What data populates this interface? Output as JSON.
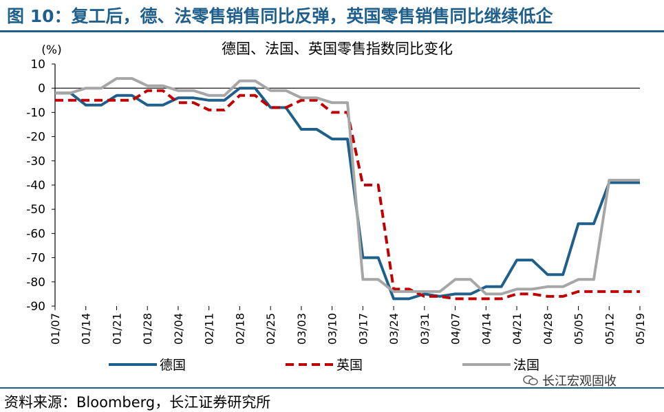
{
  "figure": {
    "title": "图 10：复工后，德、法零售销售同比反弹，英国零售销售同比继续低企",
    "source": "资料来源：Bloomberg，长江证券研究所",
    "watermark": "长江宏观固收"
  },
  "chart_data": {
    "type": "line",
    "title": "德国、法国、英国零售指数同比变化",
    "ylabel": "(%)",
    "xlabel": "",
    "ylim": [
      -90,
      10
    ],
    "yticks": [
      10,
      0,
      -10,
      -20,
      -30,
      -40,
      -50,
      -60,
      -70,
      -80,
      -90
    ],
    "x_tick_labels": [
      "01/07",
      "01/14",
      "01/21",
      "01/28",
      "02/04",
      "02/11",
      "02/18",
      "02/25",
      "03/03",
      "03/10",
      "03/17",
      "03/24",
      "03/31",
      "04/07",
      "04/14",
      "04/21",
      "04/28",
      "05/05",
      "05/12",
      "05/19"
    ],
    "x_points": [
      "01/07",
      "01/10",
      "01/14",
      "01/17",
      "01/21",
      "01/24",
      "01/28",
      "01/31",
      "02/04",
      "02/07",
      "02/11",
      "02/14",
      "02/18",
      "02/21",
      "02/25",
      "02/28",
      "03/03",
      "03/06",
      "03/10",
      "03/13",
      "03/17",
      "03/20",
      "03/24",
      "03/27",
      "03/31",
      "04/03",
      "04/07",
      "04/10",
      "04/14",
      "04/17",
      "04/21",
      "04/24",
      "04/28",
      "05/01",
      "05/05",
      "05/08",
      "05/12",
      "05/15",
      "05/19"
    ],
    "legend_position": "bottom",
    "grid": false,
    "series": [
      {
        "name": "德国",
        "color": "#1f5f8b",
        "dash": "solid",
        "values": [
          -2,
          -2,
          -7,
          -7,
          -3,
          -3,
          -7,
          -7,
          -4,
          -4,
          -5,
          -5,
          0,
          0,
          -8,
          -8,
          -17,
          -17,
          -21,
          -21,
          -70,
          -70,
          -87,
          -87,
          -85,
          -86,
          -85,
          -85,
          -82,
          -82,
          -71,
          -71,
          -77,
          -77,
          -56,
          -56,
          -39,
          -39,
          -39
        ]
      },
      {
        "name": "英国",
        "color": "#c00000",
        "dash": "dashed",
        "values": [
          -5,
          -5,
          -5,
          -5,
          -5,
          -5,
          -1,
          -1,
          -6,
          -6,
          -9,
          -9,
          -3,
          -3,
          -8,
          -8,
          -5,
          -5,
          -10,
          -10,
          -40,
          -40,
          -83,
          -83,
          -86,
          -86,
          -87,
          -87,
          -87,
          -87,
          -85,
          -85,
          -86,
          -86,
          -84,
          -84,
          -84,
          -84,
          -84
        ]
      },
      {
        "name": "法国",
        "color": "#a6a6a6",
        "dash": "solid",
        "values": [
          -2,
          -2,
          0,
          0,
          4,
          4,
          1,
          1,
          -1,
          -1,
          -3,
          -3,
          3,
          3,
          -1,
          -1,
          -4,
          -4,
          -6,
          -6,
          -79,
          -79,
          -84,
          -84,
          -84,
          -84,
          -79,
          -79,
          -85,
          -85,
          -83,
          -83,
          -82,
          -82,
          -79,
          -79,
          -38,
          -38,
          -38
        ]
      }
    ]
  }
}
